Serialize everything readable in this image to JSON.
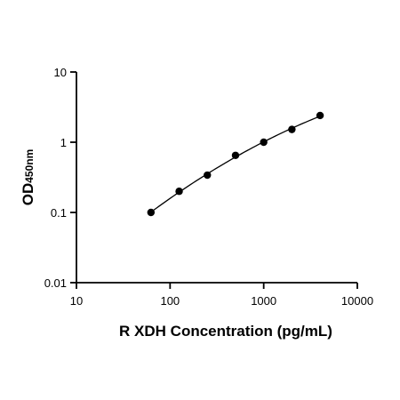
{
  "chart_data": {
    "type": "scatter",
    "xlabel": "R XDH Concentration (pg/mL)",
    "ylabel_main": "OD",
    "ylabel_sub": "450nm",
    "x_scale": "log",
    "y_scale": "log",
    "xlim": [
      10,
      10000
    ],
    "ylim": [
      0.01,
      10
    ],
    "x_ticks": [
      "10",
      "100",
      "1000",
      "10000"
    ],
    "y_ticks": [
      "0.01",
      "0.1",
      "1",
      "10"
    ],
    "grid": false,
    "legend": "none",
    "fit_curve": true,
    "series": [
      {
        "x": [
          62.5,
          125,
          250,
          500,
          1000,
          2000,
          4000
        ],
        "y": [
          0.1,
          0.2,
          0.34,
          0.65,
          1.0,
          1.52,
          2.4
        ]
      }
    ]
  }
}
